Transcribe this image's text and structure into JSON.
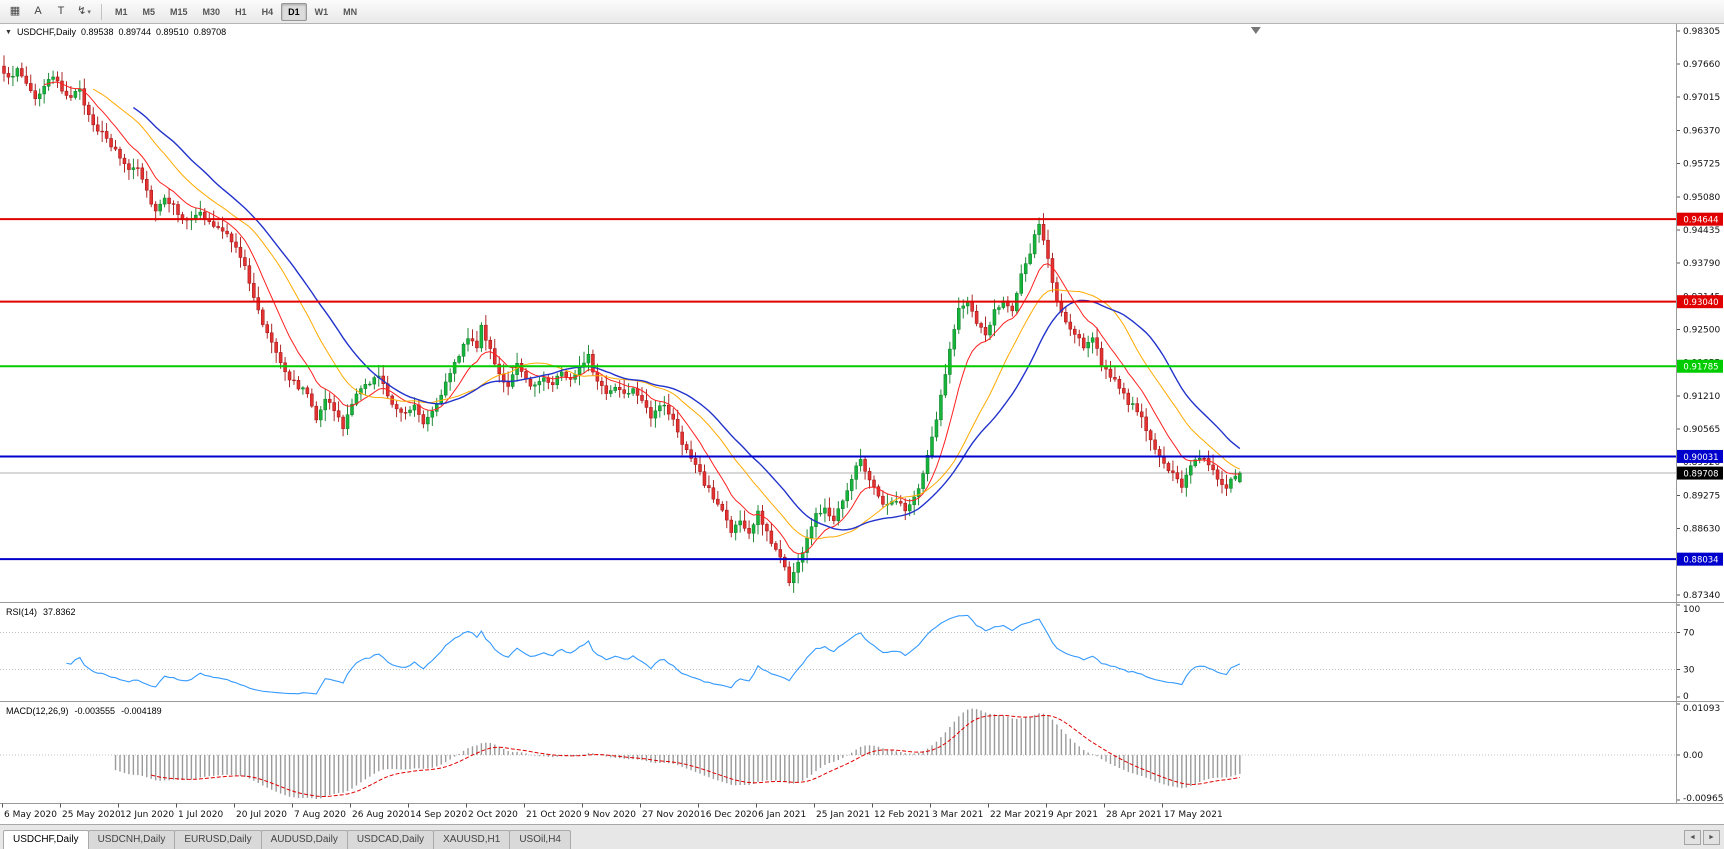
{
  "toolbar": {
    "tools": [
      {
        "name": "charts-grid-icon",
        "glyph": "▦"
      },
      {
        "name": "text-a-tool-icon",
        "glyph": "A"
      },
      {
        "name": "text-t-tool-icon",
        "glyph": "T"
      },
      {
        "name": "indicators-dropdown-icon",
        "glyph": "↯",
        "caret": "▾"
      }
    ],
    "timeframes": [
      {
        "label": "M1"
      },
      {
        "label": "M5"
      },
      {
        "label": "M15"
      },
      {
        "label": "M30"
      },
      {
        "label": "H1"
      },
      {
        "label": "H4"
      },
      {
        "label": "D1",
        "active": true
      },
      {
        "label": "W1"
      },
      {
        "label": "MN"
      }
    ]
  },
  "chart": {
    "symbol": "USDCHF,Daily",
    "menu_arrow": "▼",
    "open": "0.89538",
    "high": "0.89744",
    "low": "0.89510",
    "close": "0.89708",
    "axis_ticks": [
      "0.98305",
      "0.97660",
      "0.97015",
      "0.96370",
      "0.95725",
      "0.95080",
      "0.94435",
      "0.93790",
      "0.93145",
      "0.92500",
      "0.91855",
      "0.91210",
      "0.90565",
      "0.89920",
      "0.89275",
      "0.88630",
      "0.87985",
      "0.87340"
    ],
    "hlines": [
      {
        "price": 0.94644,
        "label": "0.94644",
        "color": "#e00000"
      },
      {
        "price": 0.9304,
        "label": "0.93040",
        "color": "#e00000"
      },
      {
        "price": 0.91785,
        "label": "0.91785",
        "color": "#00cc00"
      },
      {
        "price": 0.90031,
        "label": "0.90031",
        "color": "#0000cc"
      },
      {
        "price": 0.88034,
        "label": "0.88034",
        "color": "#0000cc"
      }
    ],
    "current_price": {
      "value": 0.89708,
      "label": "0.89708",
      "bg": "#000000"
    },
    "dates": [
      "6 May 2020",
      "25 May 2020",
      "12 Jun 2020",
      "1 Jul 2020",
      "20 Jul 2020",
      "7 Aug 2020",
      "26 Aug 2020",
      "14 Sep 2020",
      "2 Oct 2020",
      "21 Oct 2020",
      "9 Nov 2020",
      "27 Nov 2020",
      "16 Dec 2020",
      "6 Jan 2021",
      "25 Jan 2021",
      "12 Feb 2021",
      "3 Mar 2021",
      "22 Mar 2021",
      "9 Apr 2021",
      "28 Apr 2021",
      "17 May 2021"
    ]
  },
  "rsi": {
    "name": "RSI(14)",
    "value": "37.8362",
    "scale": [
      {
        "label": "100",
        "v": 100
      },
      {
        "label": "70",
        "v": 70
      },
      {
        "label": "30",
        "v": 30
      },
      {
        "label": "0",
        "v": 0
      }
    ],
    "levels": [
      70,
      30
    ],
    "line_color": "#3399ff"
  },
  "macd": {
    "name": "MACD(12,26,9)",
    "main_value": "-0.003555",
    "signal_value": "-0.004189",
    "scale": [
      {
        "label": "0.01093",
        "v": 0.01093
      },
      {
        "label": "0.00",
        "v": 0
      },
      {
        "label": "-0.00965",
        "v": -0.00965
      }
    ],
    "histogram_color": "#9b9b9b",
    "signal_color": "#e00000"
  },
  "tabs": {
    "items": [
      {
        "label": "USDCHF,Daily",
        "active": true
      },
      {
        "label": "USDCNH,Daily"
      },
      {
        "label": "EURUSD,Daily"
      },
      {
        "label": "AUDUSD,Daily"
      },
      {
        "label": "USDCAD,Daily"
      },
      {
        "label": "XAUUSD,H1"
      },
      {
        "label": "USOil,H4"
      }
    ],
    "scroll_left": "◄",
    "scroll_right": "►"
  },
  "chart_data": {
    "type": "candlestick",
    "symbol": "USDCHF",
    "timeframe": "Daily",
    "x_axis": "trading days, 6 May 2020 - late May 2021",
    "price_range": [
      0.8724,
      0.984
    ],
    "bars": 278,
    "last_ohlc": {
      "open": 0.89538,
      "high": 0.89744,
      "low": 0.8951,
      "close": 0.89708
    },
    "close_path_anchors": [
      [
        0,
        0.9742
      ],
      [
        3,
        0.9752
      ],
      [
        5,
        0.973
      ],
      [
        7,
        0.97
      ],
      [
        9,
        0.9722
      ],
      [
        11,
        0.9738
      ],
      [
        13,
        0.9716
      ],
      [
        15,
        0.9705
      ],
      [
        17,
        0.9712
      ],
      [
        19,
        0.9668
      ],
      [
        21,
        0.964
      ],
      [
        23,
        0.9618
      ],
      [
        26,
        0.9585
      ],
      [
        28,
        0.9562
      ],
      [
        30,
        0.957
      ],
      [
        32,
        0.952
      ],
      [
        34,
        0.948
      ],
      [
        36,
        0.951
      ],
      [
        38,
        0.9488
      ],
      [
        40,
        0.947
      ],
      [
        42,
        0.9462
      ],
      [
        44,
        0.9475
      ],
      [
        46,
        0.9458
      ],
      [
        48,
        0.9445
      ],
      [
        50,
        0.9432
      ],
      [
        52,
        0.9415
      ],
      [
        54,
        0.937
      ],
      [
        56,
        0.931
      ],
      [
        58,
        0.9262
      ],
      [
        60,
        0.9228
      ],
      [
        62,
        0.919
      ],
      [
        64,
        0.9155
      ],
      [
        66,
        0.914
      ],
      [
        68,
        0.9125
      ],
      [
        70,
        0.908
      ],
      [
        72,
        0.9118
      ],
      [
        74,
        0.9092
      ],
      [
        76,
        0.9058
      ],
      [
        78,
        0.9108
      ],
      [
        80,
        0.9132
      ],
      [
        82,
        0.915
      ],
      [
        84,
        0.9158
      ],
      [
        86,
        0.9122
      ],
      [
        88,
        0.9098
      ],
      [
        90,
        0.9088
      ],
      [
        92,
        0.9105
      ],
      [
        94,
        0.9072
      ],
      [
        96,
        0.9092
      ],
      [
        98,
        0.9128
      ],
      [
        100,
        0.916
      ],
      [
        102,
        0.9202
      ],
      [
        104,
        0.9238
      ],
      [
        106,
        0.9218
      ],
      [
        107,
        0.9252
      ],
      [
        109,
        0.9212
      ],
      [
        111,
        0.9165
      ],
      [
        113,
        0.9138
      ],
      [
        115,
        0.9178
      ],
      [
        117,
        0.9152
      ],
      [
        119,
        0.914
      ],
      [
        121,
        0.9158
      ],
      [
        123,
        0.9146
      ],
      [
        125,
        0.9168
      ],
      [
        127,
        0.915
      ],
      [
        129,
        0.918
      ],
      [
        131,
        0.9202
      ],
      [
        133,
        0.9145
      ],
      [
        135,
        0.9128
      ],
      [
        137,
        0.9138
      ],
      [
        139,
        0.9128
      ],
      [
        141,
        0.9135
      ],
      [
        143,
        0.9118
      ],
      [
        145,
        0.9082
      ],
      [
        147,
        0.9105
      ],
      [
        149,
        0.9088
      ],
      [
        151,
        0.9052
      ],
      [
        153,
        0.9012
      ],
      [
        155,
        0.8985
      ],
      [
        157,
        0.8952
      ],
      [
        159,
        0.8922
      ],
      [
        161,
        0.8898
      ],
      [
        163,
        0.886
      ],
      [
        165,
        0.8875
      ],
      [
        167,
        0.8852
      ],
      [
        169,
        0.8892
      ],
      [
        171,
        0.8855
      ],
      [
        173,
        0.8822
      ],
      [
        175,
        0.8792
      ],
      [
        176,
        0.876
      ],
      [
        178,
        0.8795
      ],
      [
        180,
        0.8845
      ],
      [
        182,
        0.8888
      ],
      [
        184,
        0.8905
      ],
      [
        186,
        0.8882
      ],
      [
        188,
        0.8922
      ],
      [
        190,
        0.8962
      ],
      [
        192,
        0.9
      ],
      [
        194,
        0.8958
      ],
      [
        196,
        0.8925
      ],
      [
        198,
        0.8905
      ],
      [
        200,
        0.8922
      ],
      [
        202,
        0.8895
      ],
      [
        204,
        0.892
      ],
      [
        206,
        0.8965
      ],
      [
        208,
        0.904
      ],
      [
        210,
        0.912
      ],
      [
        212,
        0.921
      ],
      [
        214,
        0.9288
      ],
      [
        216,
        0.9306
      ],
      [
        218,
        0.9256
      ],
      [
        220,
        0.924
      ],
      [
        222,
        0.9288
      ],
      [
        224,
        0.931
      ],
      [
        226,
        0.9282
      ],
      [
        228,
        0.9352
      ],
      [
        230,
        0.94
      ],
      [
        232,
        0.9458
      ],
      [
        234,
        0.9385
      ],
      [
        236,
        0.9302
      ],
      [
        238,
        0.9262
      ],
      [
        240,
        0.9238
      ],
      [
        242,
        0.9218
      ],
      [
        244,
        0.9238
      ],
      [
        246,
        0.9182
      ],
      [
        248,
        0.9162
      ],
      [
        250,
        0.9132
      ],
      [
        252,
        0.9108
      ],
      [
        254,
        0.9096
      ],
      [
        256,
        0.9052
      ],
      [
        258,
        0.9012
      ],
      [
        260,
        0.8992
      ],
      [
        262,
        0.8966
      ],
      [
        264,
        0.8946
      ],
      [
        266,
        0.899
      ],
      [
        268,
        0.9004
      ],
      [
        270,
        0.899
      ],
      [
        272,
        0.8962
      ],
      [
        274,
        0.8944
      ],
      [
        276,
        0.8966
      ],
      [
        277,
        0.8971
      ]
    ],
    "moving_averages": [
      {
        "type": "EMA",
        "period": 10,
        "color": "#ff2020",
        "width": 1
      },
      {
        "type": "SMA",
        "period": 21,
        "color": "#ffaa00",
        "width": 1
      },
      {
        "type": "SMA",
        "period": 30,
        "color": "#2233cc",
        "width": 1.4
      }
    ],
    "style": {
      "up_fill": "#18b33c",
      "up_stroke": "#0a7d24",
      "down_fill": "#e23232",
      "down_stroke": "#a31111"
    }
  }
}
